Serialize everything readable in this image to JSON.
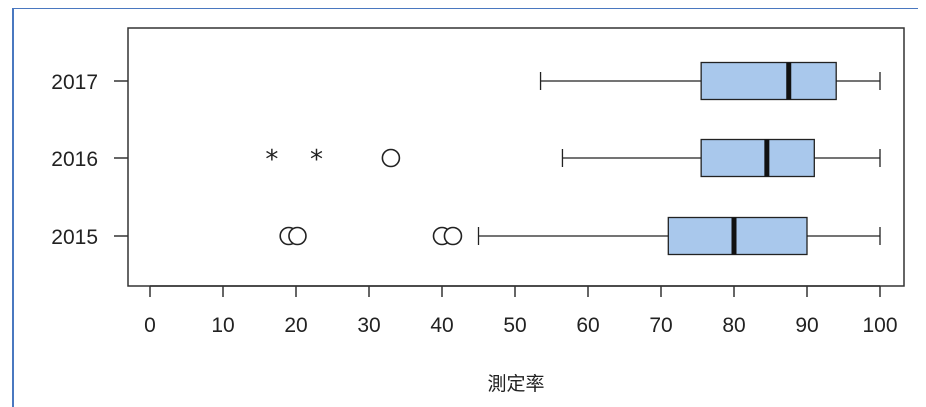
{
  "chart_data": {
    "type": "boxplot",
    "orientation": "horizontal",
    "xlabel": "測定率",
    "xlim": [
      0,
      100
    ],
    "x_ticks": [
      0,
      10,
      20,
      30,
      40,
      50,
      60,
      70,
      80,
      90,
      100
    ],
    "categories": [
      "2017",
      "2016",
      "2015"
    ],
    "box_color": "#a9c8ec",
    "series": [
      {
        "category": "2017",
        "whisker_low": 53.5,
        "q1": 75.5,
        "median": 87.5,
        "q3": 94,
        "whisker_high": 100,
        "outliers": [],
        "extremes": []
      },
      {
        "category": "2016",
        "whisker_low": 56.5,
        "q1": 75.5,
        "median": 84.5,
        "q3": 91,
        "whisker_high": 100,
        "outliers": [
          33
        ],
        "extremes": [
          16.7,
          22.8
        ]
      },
      {
        "category": "2015",
        "whisker_low": 45,
        "q1": 71,
        "median": 80,
        "q3": 90,
        "whisker_high": 100,
        "outliers": [
          19,
          20.2,
          40,
          41.5
        ],
        "extremes": []
      }
    ],
    "grid": false,
    "legend": "none"
  }
}
